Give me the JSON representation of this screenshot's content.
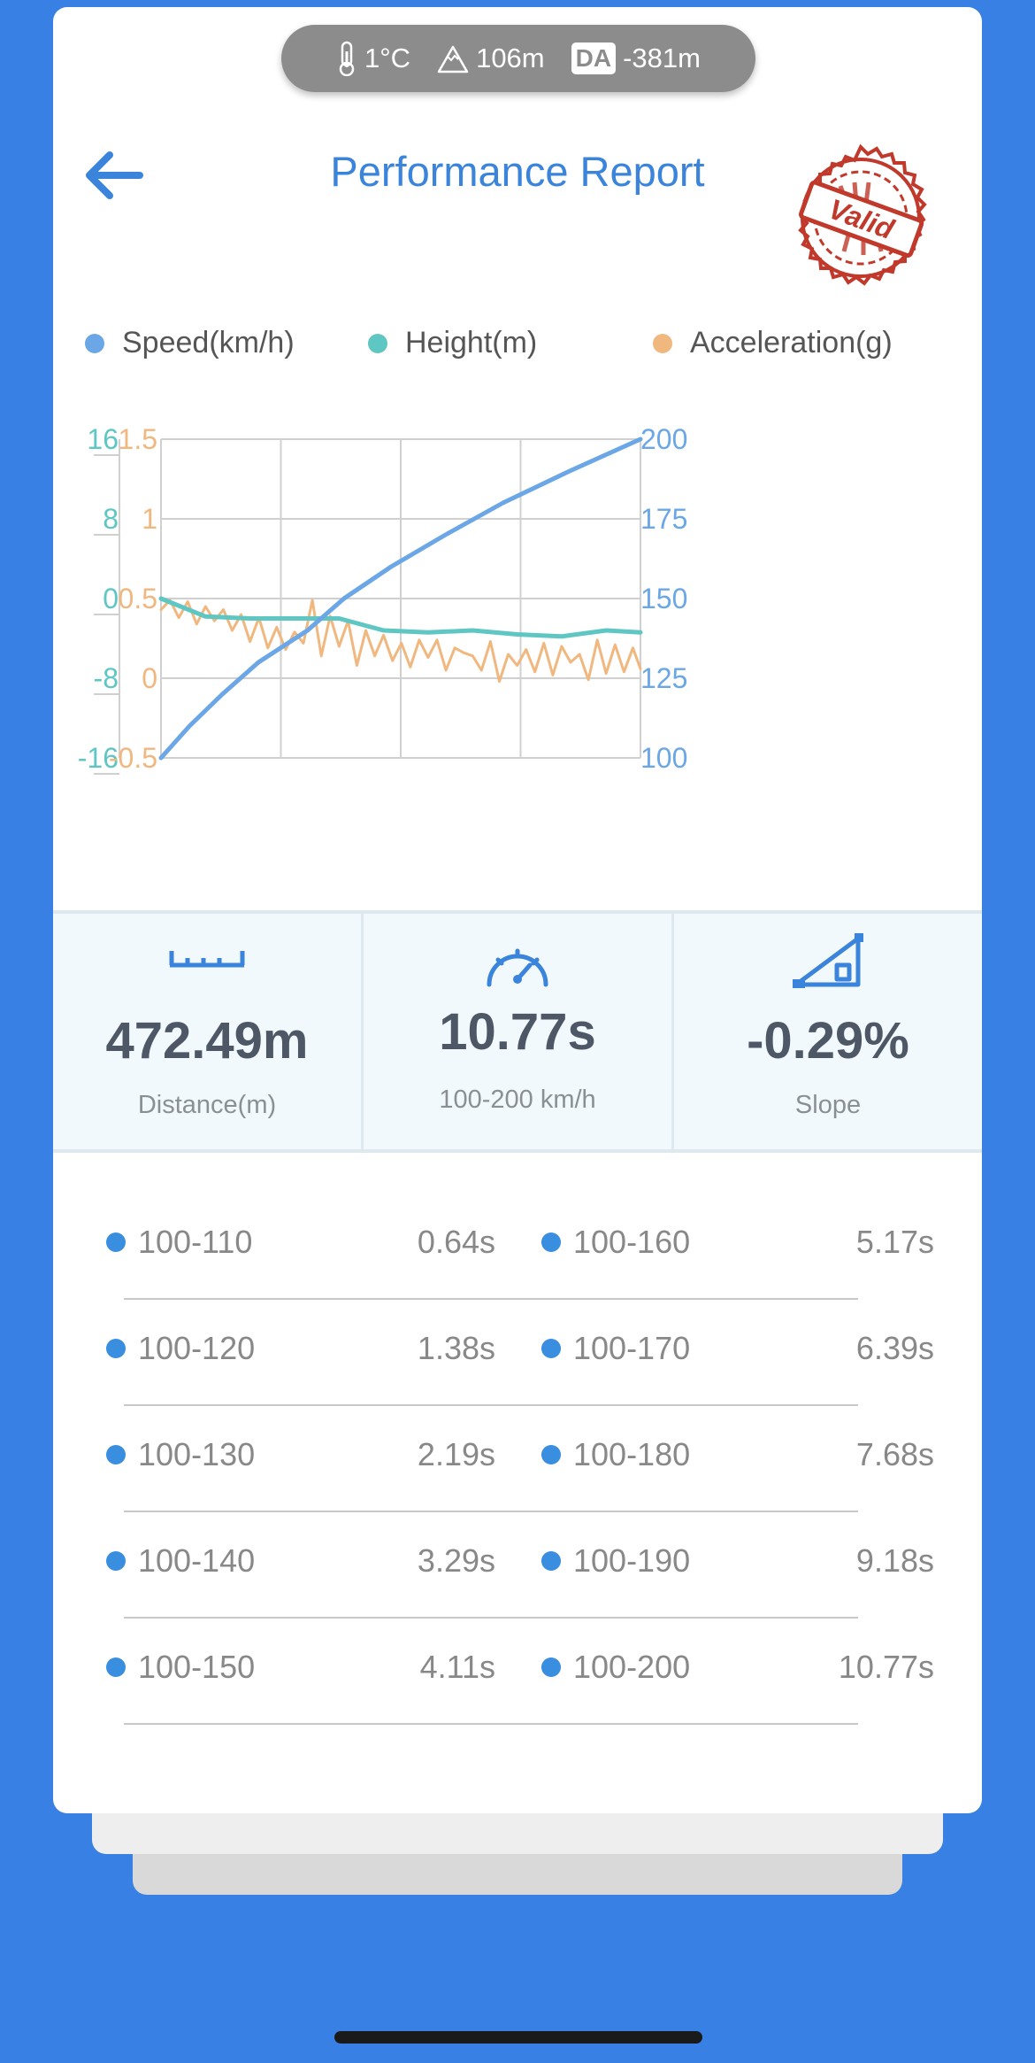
{
  "status": {
    "temperature": "1°C",
    "altitude": "106m",
    "da_badge": "DA",
    "density_altitude": "-381m"
  },
  "header": {
    "title": "Performance Report",
    "stamp_text": "Valid"
  },
  "colors": {
    "speed": "#6ba7e6",
    "height": "#5ec6c3",
    "acceleration": "#f0b77f",
    "accent": "#3a84dc",
    "stamp": "#c0392b"
  },
  "legend": [
    {
      "label": "Speed(km/h)",
      "color": "#6ba7e6"
    },
    {
      "label": "Height(m)",
      "color": "#5ec6c3"
    },
    {
      "label": "Acceleration(g)",
      "color": "#f0b77f"
    }
  ],
  "chart_data": {
    "type": "line",
    "grid": true,
    "legend_position": "top",
    "x_range": [
      0,
      10.77
    ],
    "axes": {
      "height": {
        "side": "left-outer",
        "ticks": [
          "16",
          "8",
          "0",
          "-8",
          "-16"
        ],
        "range": [
          -16,
          16
        ]
      },
      "acceleration": {
        "side": "left-inner",
        "ticks": [
          "1.5",
          "1",
          "0.5",
          "0",
          "-0.5"
        ],
        "range": [
          -0.5,
          1.5
        ]
      },
      "speed": {
        "side": "right",
        "ticks": [
          "200",
          "175",
          "150",
          "125",
          "100"
        ],
        "range": [
          100,
          200
        ]
      }
    },
    "series": [
      {
        "name": "Speed(km/h)",
        "axis": "speed",
        "x": [
          0,
          0.64,
          1.38,
          2.19,
          3.29,
          4.11,
          5.17,
          6.39,
          7.68,
          9.18,
          10.77
        ],
        "y": [
          100,
          110,
          120,
          130,
          140,
          150,
          160,
          170,
          180,
          190,
          200
        ]
      },
      {
        "name": "Height(m)",
        "axis": "height",
        "x": [
          0,
          1.0,
          2.0,
          3.0,
          4.0,
          5.0,
          6.0,
          7.0,
          8.0,
          9.0,
          10.0,
          10.77
        ],
        "y": [
          0,
          -1.8,
          -2,
          -2,
          -2,
          -3.2,
          -3.4,
          -3.2,
          -3.6,
          -3.8,
          -3.2,
          -3.4
        ]
      },
      {
        "name": "Acceleration(g)",
        "axis": "acceleration",
        "x": [
          0,
          0.2,
          0.4,
          0.6,
          0.8,
          1.0,
          1.2,
          1.4,
          1.6,
          1.8,
          2.0,
          2.2,
          2.4,
          2.6,
          2.8,
          3.0,
          3.2,
          3.4,
          3.6,
          3.8,
          4.0,
          4.2,
          4.4,
          4.6,
          4.8,
          5.0,
          5.2,
          5.4,
          5.6,
          5.8,
          6.0,
          6.2,
          6.4,
          6.6,
          6.8,
          7.0,
          7.2,
          7.4,
          7.6,
          7.8,
          8.0,
          8.2,
          8.4,
          8.6,
          8.8,
          9.0,
          9.2,
          9.4,
          9.6,
          9.8,
          10.0,
          10.2,
          10.4,
          10.6,
          10.77
        ],
        "y": [
          0.43,
          0.49,
          0.38,
          0.48,
          0.34,
          0.45,
          0.36,
          0.43,
          0.3,
          0.4,
          0.23,
          0.38,
          0.19,
          0.32,
          0.18,
          0.29,
          0.22,
          0.49,
          0.14,
          0.39,
          0.2,
          0.36,
          0.08,
          0.3,
          0.14,
          0.27,
          0.11,
          0.22,
          0.07,
          0.24,
          0.13,
          0.24,
          0.05,
          0.19,
          0.16,
          0.14,
          0.05,
          0.23,
          -0.02,
          0.15,
          0.08,
          0.18,
          0.04,
          0.22,
          0.02,
          0.2,
          0.1,
          0.15,
          -0.01,
          0.24,
          0.03,
          0.21,
          0.04,
          0.19,
          0.06
        ]
      }
    ]
  },
  "stats": [
    {
      "icon": "ruler-icon",
      "value": "472.49m",
      "label": "Distance(m)"
    },
    {
      "icon": "speedometer-icon",
      "value": "10.77s",
      "label": "100-200 km/h"
    },
    {
      "icon": "slope-icon",
      "value": "-0.29%",
      "label": "Slope"
    }
  ],
  "splits": [
    {
      "left_label": "100-110",
      "left_time": "0.64s",
      "right_label": "100-160",
      "right_time": "5.17s"
    },
    {
      "left_label": "100-120",
      "left_time": "1.38s",
      "right_label": "100-170",
      "right_time": "6.39s"
    },
    {
      "left_label": "100-130",
      "left_time": "2.19s",
      "right_label": "100-180",
      "right_time": "7.68s"
    },
    {
      "left_label": "100-140",
      "left_time": "3.29s",
      "right_label": "100-190",
      "right_time": "9.18s"
    },
    {
      "left_label": "100-150",
      "left_time": "4.11s",
      "right_label": "100-200",
      "right_time": "10.77s"
    }
  ]
}
